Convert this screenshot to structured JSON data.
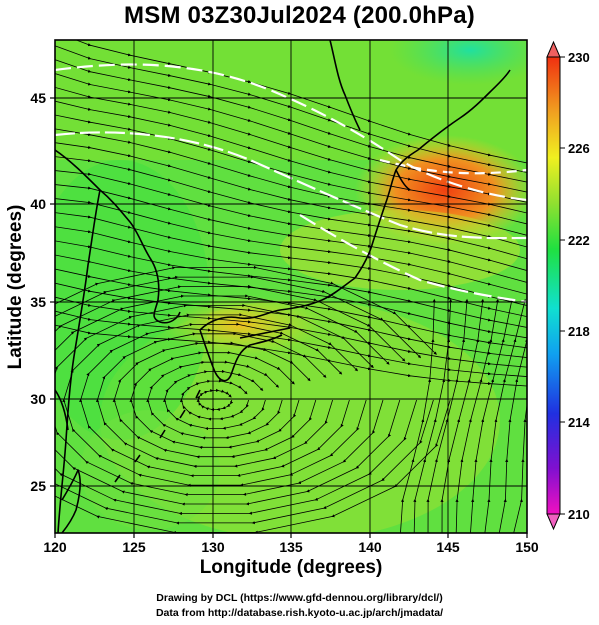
{
  "title": "MSM 03Z30Jul2024 (200.0hPa)",
  "xlabel": "Longitude (degrees)",
  "ylabel": "Latitude  (degrees)",
  "credit_line1": "Drawing by DCL (https://www.gfd-dennou.org/library/dcl/)",
  "credit_line2": "Data from http://database.rish.kyoto-u.ac.jp/arch/jmadata/",
  "map": {
    "lon_range": [
      120,
      150
    ],
    "lat_range": [
      22.4,
      47.6
    ],
    "lon_ticks": [
      "120",
      "125",
      "130",
      "135",
      "140",
      "145",
      "150"
    ],
    "lat_ticks": [
      "25",
      "30",
      "35",
      "40",
      "45"
    ],
    "variable": "temperature_shaded_with_wind_streamlines",
    "features": [
      "coastlines",
      "lat_lon_grid",
      "streamlines",
      "white_contours"
    ]
  },
  "colorbar": {
    "min": 210,
    "max": 230,
    "tick_labels": [
      "230",
      "226",
      "222",
      "218",
      "214",
      "210"
    ],
    "colors": [
      "#f010c0",
      "#8010d0",
      "#2030e0",
      "#10a0f0",
      "#10e0d0",
      "#20e040",
      "#90e030",
      "#f0f020",
      "#f0a020",
      "#f03010"
    ]
  }
}
